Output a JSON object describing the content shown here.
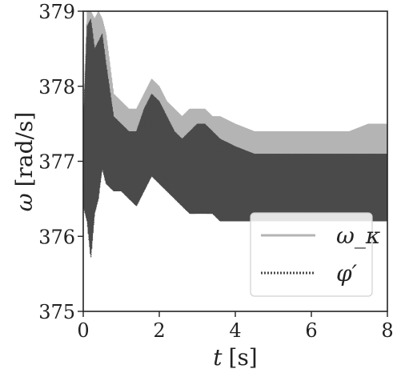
{
  "chart_data": {
    "type": "line",
    "xlabel_symbol": "t",
    "xlabel_unit": "[s]",
    "ylabel_symbol": "ω",
    "ylabel_unit": "[rad/s]",
    "xlim": [
      0,
      8
    ],
    "ylim": [
      375,
      379
    ],
    "xticks": [
      "0",
      "2",
      "4",
      "6",
      "8"
    ],
    "yticks": [
      "375",
      "376",
      "377",
      "378",
      "379"
    ],
    "grid": false,
    "legend_position": "bottom-right",
    "series": [
      {
        "name": "ω_κ",
        "style": "solid",
        "color": "#b4b4b4",
        "x": [
          0.0,
          0.1,
          0.2,
          0.3,
          0.4,
          0.5,
          0.6,
          0.8,
          1.0,
          1.2,
          1.4,
          1.6,
          1.8,
          2.0,
          2.2,
          2.4,
          2.6,
          2.8,
          3.0,
          3.2,
          3.4,
          3.6,
          4.0,
          4.5,
          5.0,
          5.5,
          6.0,
          6.5,
          7.0,
          7.5,
          8.0
        ],
        "upper": [
          377.5,
          379.0,
          379.0,
          378.9,
          379.0,
          378.9,
          378.7,
          377.9,
          377.8,
          377.7,
          377.7,
          377.9,
          378.1,
          378.0,
          377.8,
          377.7,
          377.6,
          377.7,
          377.7,
          377.7,
          377.6,
          377.6,
          377.5,
          377.4,
          377.4,
          377.4,
          377.4,
          377.4,
          377.4,
          377.5,
          377.5
        ],
        "lower": [
          376.5,
          376.8,
          376.9,
          377.0,
          377.1,
          377.2,
          377.0,
          376.9,
          376.8,
          376.8,
          376.8,
          376.9,
          377.0,
          377.0,
          376.9,
          376.8,
          376.7,
          376.6,
          376.6,
          376.6,
          376.5,
          376.5,
          376.4,
          376.3,
          376.3,
          376.3,
          376.3,
          376.3,
          376.3,
          376.3,
          376.3
        ]
      },
      {
        "name": "φ′",
        "style": "dotted",
        "color": "#4a4a4a",
        "x": [
          0.0,
          0.1,
          0.2,
          0.3,
          0.4,
          0.5,
          0.6,
          0.8,
          1.0,
          1.2,
          1.4,
          1.6,
          1.8,
          2.0,
          2.2,
          2.4,
          2.6,
          2.8,
          3.0,
          3.2,
          3.4,
          3.6,
          4.0,
          4.5,
          5.0,
          5.5,
          6.0,
          6.5,
          7.0,
          7.5,
          8.0
        ],
        "upper": [
          377.5,
          378.8,
          378.9,
          378.5,
          378.6,
          378.7,
          378.3,
          377.6,
          377.5,
          377.4,
          377.4,
          377.7,
          377.9,
          377.8,
          377.6,
          377.4,
          377.3,
          377.4,
          377.5,
          377.5,
          377.4,
          377.3,
          377.2,
          377.1,
          377.1,
          377.1,
          377.1,
          377.1,
          377.1,
          377.1,
          377.1
        ],
        "lower": [
          376.4,
          376.2,
          375.7,
          376.3,
          376.5,
          376.9,
          376.7,
          376.6,
          376.6,
          376.5,
          376.4,
          376.6,
          376.8,
          376.7,
          376.6,
          376.5,
          376.4,
          376.3,
          376.3,
          376.3,
          376.3,
          376.2,
          376.2,
          376.2,
          376.2,
          376.2,
          376.2,
          376.2,
          376.2,
          376.2,
          376.2
        ]
      }
    ]
  }
}
